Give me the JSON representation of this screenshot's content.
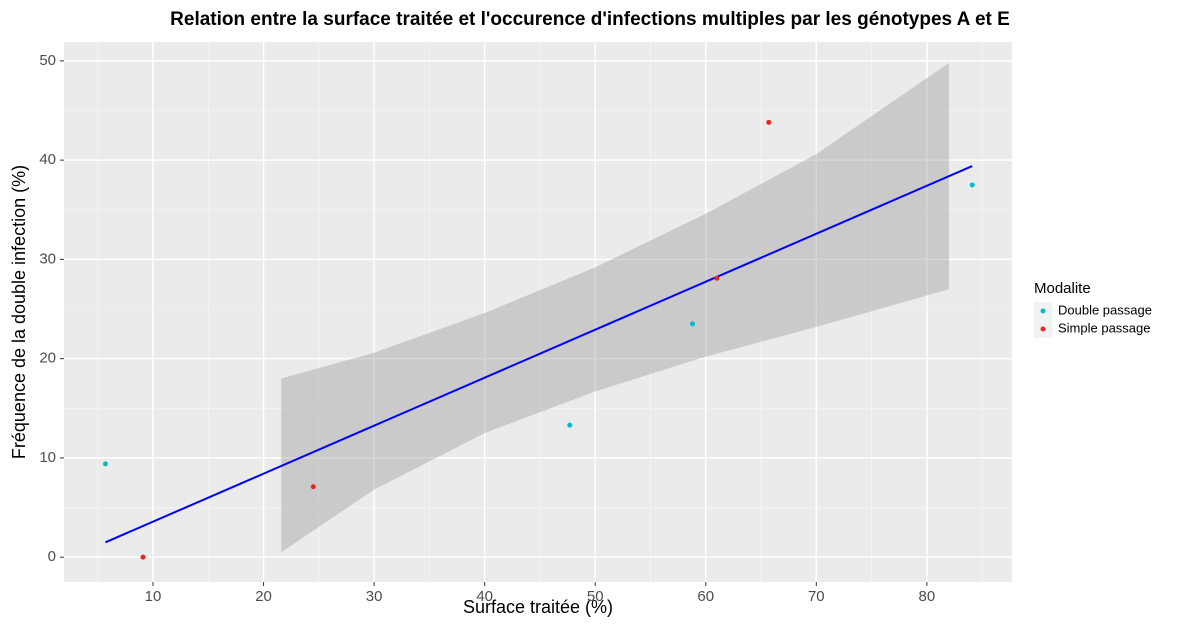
{
  "chart_data": {
    "type": "scatter",
    "title": "Relation entre la surface traitée et l'occurence d'infections multiples par les génotypes A et E",
    "x_label": "Surface traitée (%)",
    "y_label": "Fréquence de la double infection (%)",
    "legend_title": "Modalite",
    "legend_position": "right",
    "series": [
      {
        "name": "Double passage",
        "color": "#00BFC4",
        "x": [
          5.7,
          47.7,
          58.8,
          84.1
        ],
        "values": [
          9.4,
          13.3,
          23.5,
          37.5
        ]
      },
      {
        "name": "Simple passage",
        "color": "#E8251F",
        "x": [
          9.1,
          24.5,
          61,
          65.7
        ],
        "values": [
          0,
          7.1,
          28.1,
          43.8
        ]
      }
    ],
    "fit": {
      "color": "#0000FF",
      "x": [
        5.7,
        84.1
      ],
      "values": [
        1.5,
        39.4
      ]
    },
    "band": {
      "color": "#999999",
      "x": [
        21.6,
        30,
        40,
        50,
        60,
        70,
        82
      ],
      "lower": [
        0.5,
        6.8,
        12.5,
        16.7,
        20.2,
        23.2,
        27
      ],
      "upper": [
        18,
        20.6,
        24.6,
        29.2,
        34.6,
        40.6,
        49.8
      ]
    },
    "xlim": [
      1.95,
      87.7
    ],
    "ylim": [
      -2.5,
      51.9
    ],
    "xticks": [
      10,
      20,
      30,
      40,
      50,
      60,
      70,
      80
    ],
    "yticks": [
      0,
      10,
      20,
      30,
      40,
      50
    ],
    "minor_xticks": [
      5,
      15,
      25,
      35,
      45,
      55,
      65,
      75,
      85
    ],
    "minor_yticks": [
      5,
      15,
      25,
      35,
      45
    ],
    "grid": true
  }
}
